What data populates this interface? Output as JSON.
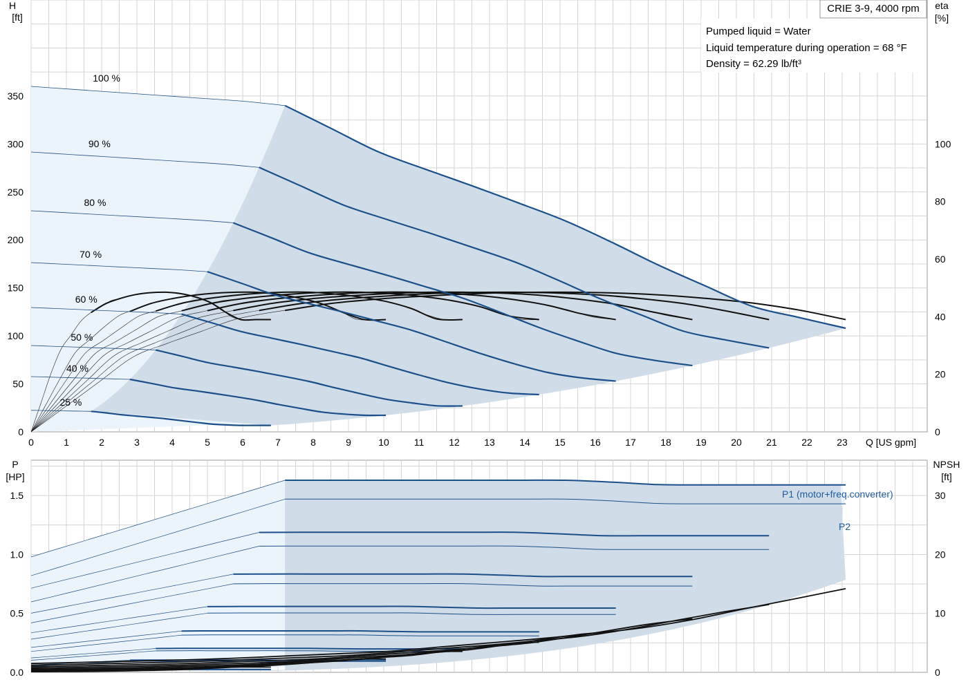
{
  "chart_data": [
    {
      "type": "line",
      "title": "CRIE 3-9, 4000 rpm",
      "info": [
        "Pumped liquid = Water",
        "Liquid temperature during operation = 68 °F",
        "Density = 62.29 lb/ft³"
      ],
      "y_label": "H",
      "y_unit": "[ft]",
      "y2_label": "eta",
      "y2_unit": "[%]",
      "x_label": "Q [US gpm]",
      "x_ticks": [
        "0",
        "1",
        "2",
        "3",
        "4",
        "5",
        "6",
        "7",
        "8",
        "9",
        "10",
        "11",
        "12",
        "13",
        "14",
        "15",
        "16",
        "17",
        "18",
        "19",
        "20",
        "21",
        "22",
        "23"
      ],
      "y_ticks": [
        "0",
        "50",
        "100",
        "150",
        "200",
        "250",
        "300",
        "350"
      ],
      "y2_ticks": [
        "0",
        "20",
        "40",
        "60",
        "80",
        "100"
      ],
      "xlim": [
        0,
        24.2
      ],
      "ylim": [
        0,
        450
      ],
      "y2lim": [
        0,
        150
      ],
      "grid": true,
      "speed_labels": [
        "100 %",
        "90 %",
        "80 %",
        "70 %",
        "60 %",
        "50 %",
        "40 %",
        "25 %"
      ],
      "speeds": [
        1.0,
        0.9,
        0.8,
        0.7,
        0.6,
        0.5,
        0.4,
        0.25
      ],
      "head_curve_100": {
        "x": [
          0,
          7.0,
          7.2,
          10,
          13,
          15.5,
          18,
          20.5,
          23.1
        ],
        "y": [
          360,
          342,
          340,
          289,
          250,
          215,
          170,
          130,
          108
        ]
      },
      "efficiency_curve_100_pct": {
        "x": [
          0,
          3,
          6,
          9,
          12,
          14,
          16,
          18,
          20,
          21.5,
          23.1
        ],
        "y": [
          0,
          27,
          40,
          45.5,
          47.8,
          48.5,
          48.5,
          47.5,
          45.5,
          43,
          39
        ]
      },
      "operating_area": {
        "min_flow_at_100": 7.2,
        "max_flow_at_100": 23.1,
        "min_flow_at_low_speed": 1.7,
        "max_flow_at_low_speed": 6.8
      }
    },
    {
      "type": "line",
      "y_label": "P",
      "y_unit": "[HP]",
      "y2_label": "NPSH",
      "y2_unit": "[ft]",
      "x_label": "Q [US gpm]",
      "y_ticks": [
        "0.0",
        "0.5",
        "1.0",
        "1.5"
      ],
      "y2_ticks": [
        "0",
        "10",
        "20",
        "30"
      ],
      "ylim": [
        0,
        1.8
      ],
      "y2lim": [
        0,
        36
      ],
      "grid": true,
      "series_labels": [
        "P1 (motor+freq.converter)",
        "P2"
      ],
      "p1_curve_100": {
        "x": [
          0,
          7.2,
          13,
          15.5,
          18,
          23.1
        ],
        "y": [
          0.98,
          1.63,
          1.63,
          1.63,
          1.59,
          1.59
        ]
      },
      "p2_curve_100": {
        "x": [
          0,
          7.2,
          13,
          15.5,
          18,
          23.1
        ],
        "y": [
          0.82,
          1.47,
          1.47,
          1.47,
          1.43,
          1.43
        ]
      },
      "npsh_curve_100": {
        "x": [
          0,
          5,
          10,
          15,
          18,
          20,
          23.1
        ],
        "y": [
          1.5,
          2.2,
          3.5,
          6,
          8,
          10.5,
          14.2
        ]
      }
    }
  ]
}
